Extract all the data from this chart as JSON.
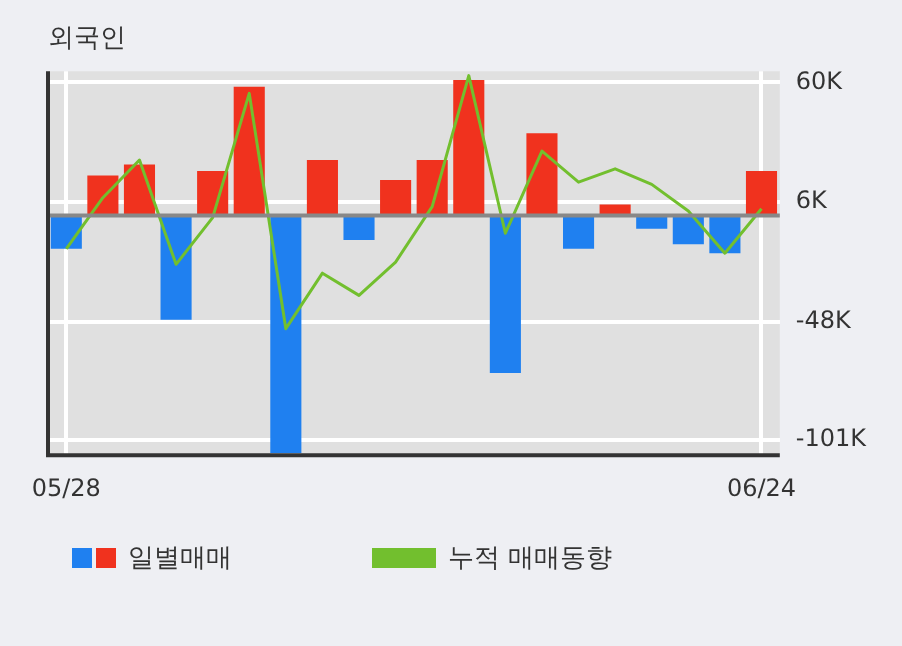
{
  "chart_data": {
    "type": "bar",
    "title": "외국인",
    "categories": [
      "05/28",
      null,
      null,
      null,
      null,
      null,
      null,
      null,
      null,
      null,
      null,
      null,
      null,
      null,
      null,
      null,
      null,
      null,
      null,
      "06/24"
    ],
    "series": [
      {
        "name": "일별매매",
        "colors": [
          "#1f80f0",
          "#f0321e",
          "#f0321e",
          "#1f80f0",
          "#f0321e",
          "#f0321e",
          "#1f80f0",
          "#f0321e",
          "#1f80f0",
          "#f0321e",
          "#f0321e",
          "#f0321e",
          "#1f80f0",
          "#f0321e",
          "#1f80f0",
          "#f0321e",
          "#1f80f0",
          "#1f80f0",
          "#1f80f0",
          "#f0321e"
        ],
        "values": [
          -15000,
          18000,
          23000,
          -47000,
          20000,
          58000,
          -107000,
          25000,
          -11000,
          16000,
          25000,
          61000,
          -71000,
          37000,
          -15000,
          5000,
          -6000,
          -13000,
          -17000,
          20000
        ]
      },
      {
        "name": "누적 매매동향",
        "type": "line",
        "color": "#72bf2e",
        "values": [
          -15000,
          8000,
          25000,
          -22000,
          -1000,
          55000,
          -51000,
          -26000,
          -36000,
          -21000,
          4000,
          63000,
          -8000,
          29000,
          15000,
          21000,
          14000,
          2000,
          -17000,
          3000
        ]
      }
    ],
    "ylim": [
      -108000,
      65000
    ],
    "yticks": [
      {
        "value": 60000,
        "label": "60K"
      },
      {
        "value": 6000,
        "label": "6K"
      },
      {
        "value": -48000,
        "label": "-48K"
      },
      {
        "value": -101000,
        "label": "-101K"
      }
    ],
    "ref_lines": [
      {
        "axis": "y",
        "value": 0,
        "color": "#888888"
      }
    ],
    "grid": true,
    "legend": "bottom",
    "marker": "none"
  }
}
